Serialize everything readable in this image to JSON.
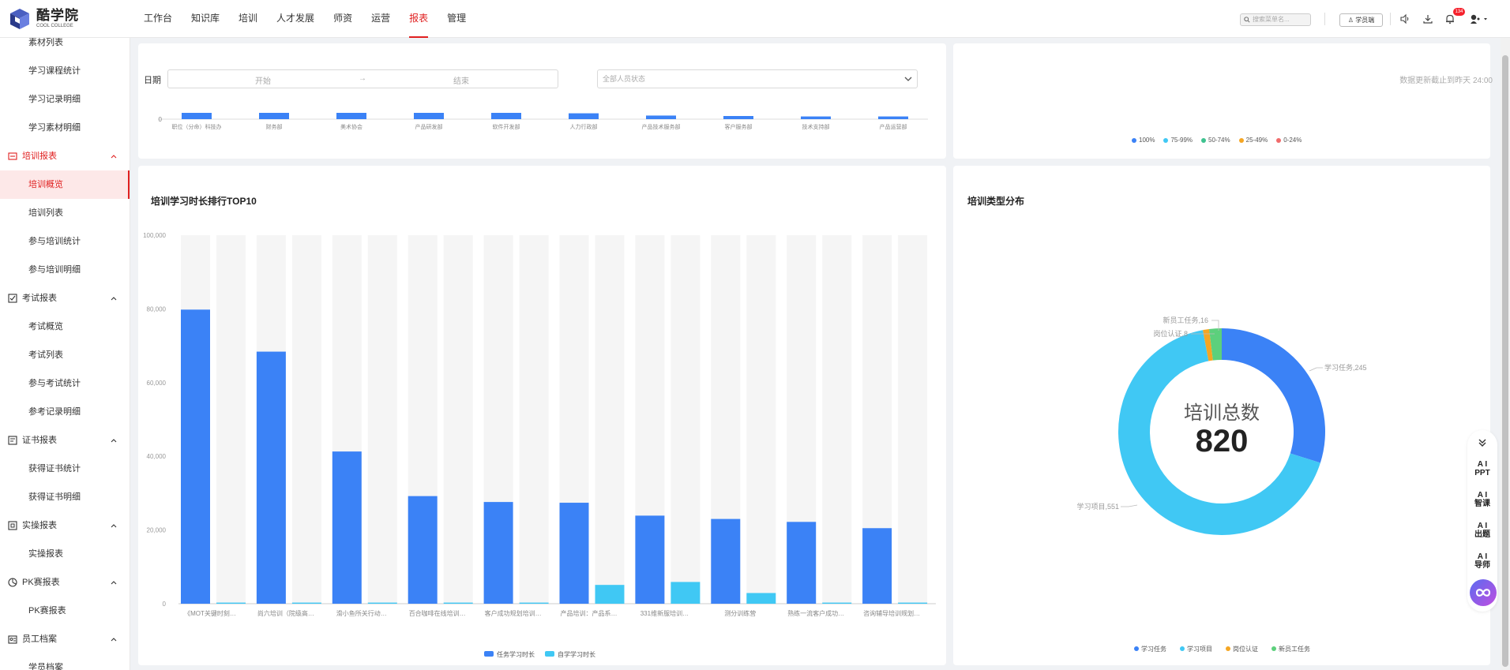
{
  "brand": {
    "name": "酷学院",
    "sub": "COOL COLLEGE"
  },
  "nav": [
    "工作台",
    "知识库",
    "培训",
    "人才发展",
    "师资",
    "运营",
    "报表",
    "管理"
  ],
  "nav_active": "报表",
  "header": {
    "search_placeholder": "搜索菜单名...",
    "role_label": "学员端",
    "notification_count": "134"
  },
  "sidebar": {
    "items": [
      {
        "label": "素材列表",
        "kind": "sub"
      },
      {
        "label": "学习课程统计",
        "kind": "sub"
      },
      {
        "label": "学习记录明细",
        "kind": "sub"
      },
      {
        "label": "学习素材明细",
        "kind": "sub"
      },
      {
        "label": "培训报表",
        "kind": "group",
        "icon": "training-report-icon",
        "expanded": true
      },
      {
        "label": "培训概览",
        "kind": "sub",
        "active": true
      },
      {
        "label": "培训列表",
        "kind": "sub"
      },
      {
        "label": "参与培训统计",
        "kind": "sub"
      },
      {
        "label": "参与培训明细",
        "kind": "sub"
      },
      {
        "label": "考试报表",
        "kind": "group",
        "icon": "exam-report-icon"
      },
      {
        "label": "考试概览",
        "kind": "sub"
      },
      {
        "label": "考试列表",
        "kind": "sub"
      },
      {
        "label": "参与考试统计",
        "kind": "sub"
      },
      {
        "label": "参考记录明细",
        "kind": "sub"
      },
      {
        "label": "证书报表",
        "kind": "group",
        "icon": "certificate-report-icon"
      },
      {
        "label": "获得证书统计",
        "kind": "sub"
      },
      {
        "label": "获得证书明细",
        "kind": "sub"
      },
      {
        "label": "实操报表",
        "kind": "group",
        "icon": "practice-report-icon"
      },
      {
        "label": "实操报表",
        "kind": "sub"
      },
      {
        "label": "PK赛报表",
        "kind": "group",
        "icon": "pk-report-icon"
      },
      {
        "label": "PK赛报表",
        "kind": "sub"
      },
      {
        "label": "员工档案",
        "kind": "group",
        "icon": "employee-archive-icon"
      },
      {
        "label": "学员档案",
        "kind": "sub"
      }
    ]
  },
  "filters": {
    "date_label": "日期",
    "start_placeholder": "开始",
    "range_sep": "→",
    "end_placeholder": "结束",
    "status_placeholder": "全部人员状态",
    "update_note": "数据更新截止到昨天 24:00"
  },
  "colors": {
    "accent": "#e02020",
    "blue": "#3b82f6",
    "cyan": "#40c8f4",
    "orange": "#f5a623",
    "green": "#5cd07c",
    "red": "#f06b6b",
    "teal": "#3ec28f"
  },
  "top_left_chart": {
    "zero_label": "0",
    "categories": [
      "职位（分命）科技办",
      "财务部",
      "美术协会",
      "产品研发部",
      "软件开发部",
      "人力行政部",
      "产品技术服务部",
      "客户服务部",
      "技术支持部",
      "产品运营部"
    ],
    "values": [
      14,
      14,
      14,
      14,
      14,
      13,
      8,
      7,
      6,
      6
    ]
  },
  "completion_legend": [
    {
      "label": "100%",
      "color": "#3b82f6"
    },
    {
      "label": "75-99%",
      "color": "#40c8f4"
    },
    {
      "label": "50-74%",
      "color": "#3ec28f"
    },
    {
      "label": "25-49%",
      "color": "#f5a623"
    },
    {
      "label": "0-24%",
      "color": "#f06b6b"
    }
  ],
  "top10": {
    "title": "培训学习时长排行TOP10"
  },
  "type_dist": {
    "title": "培训类型分布",
    "center_label": "培训总数",
    "center_value": "820"
  },
  "ai_panel": {
    "items": [
      {
        "top": "A I",
        "bottom": "PPT"
      },
      {
        "top": "A I",
        "bottom": "智课"
      },
      {
        "top": "A I",
        "bottom": "出题"
      },
      {
        "top": "A I",
        "bottom": "导师"
      }
    ]
  },
  "chart_data": [
    {
      "type": "bar",
      "title": "培训学习时长排行TOP10",
      "categories": [
        "《MOT关键时刻…",
        "尚六培训（院级高…",
        "滑小鱼所关行动…",
        "百合咖啡在线培训…",
        "客户成功规划培训…",
        "产品培训：产品系…",
        "331维新服培训…",
        "测分训练营",
        "熟练一流客户成功…",
        "咨询辅导培训规划…"
      ],
      "ylim": [
        0,
        100000
      ],
      "yticks": [
        "0",
        "20,000",
        "40,000",
        "60,000",
        "80,000",
        "100,000"
      ],
      "legend_position": "bottom",
      "series": [
        {
          "name": "任务学习时长",
          "color": "#3b82f6",
          "values": [
            79800,
            68400,
            41300,
            29200,
            27600,
            27400,
            23900,
            23000,
            22200,
            20500
          ]
        },
        {
          "name": "自学学习时长",
          "color": "#40c8f4",
          "values": [
            300,
            300,
            300,
            300,
            300,
            5100,
            5900,
            2900,
            300,
            300
          ]
        }
      ]
    },
    {
      "type": "pie",
      "title": "培训类型分布",
      "legend_position": "bottom",
      "slices": [
        {
          "label": "学习任务",
          "value": 245,
          "color": "#3b82f6",
          "callout": "学习任务,245"
        },
        {
          "label": "学习项目",
          "value": 551,
          "color": "#40c8f4",
          "callout": "学习项目,551"
        },
        {
          "label": "岗位认证",
          "value": 8,
          "color": "#f5a623",
          "callout": "岗位认证,8"
        },
        {
          "label": "新员工任务",
          "value": 16,
          "color": "#5cd07c",
          "callout": "新员工任务,16"
        }
      ]
    }
  ]
}
